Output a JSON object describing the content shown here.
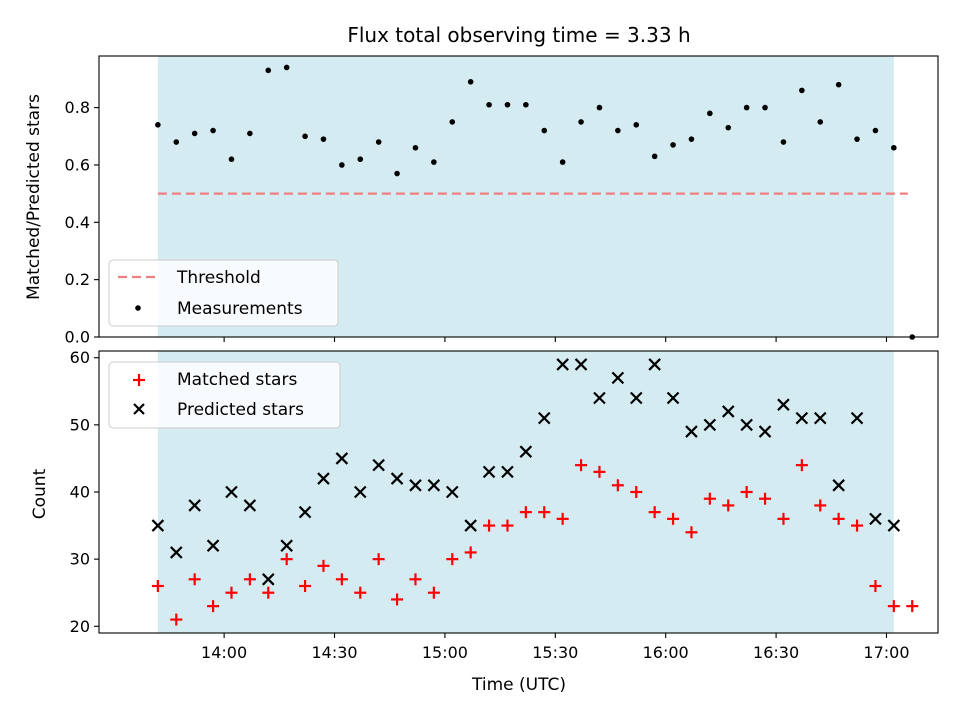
{
  "chart_data": [
    {
      "type": "scatter",
      "title": "Flux total observing time = 3.33 h",
      "xlabel": "",
      "ylabel": "Matched/Predicted stars",
      "ylim": [
        0,
        0.98
      ],
      "yticks": [
        "0.0",
        "0.2",
        "0.4",
        "0.6",
        "0.8"
      ],
      "grid": false,
      "legend_position": "lower-left",
      "shaded_interval": [
        "13:42",
        "17:02"
      ],
      "series": [
        {
          "name": "Threshold",
          "style": "dashed-line",
          "color": "#f08080",
          "x": [
            "13:42",
            "17:02"
          ],
          "y": [
            0.5,
            0.5
          ]
        },
        {
          "name": "Measurements",
          "style": "dot",
          "color": "#000000",
          "x": [
            "13:42",
            "13:47",
            "13:52",
            "13:57",
            "14:02",
            "14:07",
            "14:12",
            "14:17",
            "14:22",
            "14:27",
            "14:32",
            "14:37",
            "14:42",
            "14:47",
            "14:52",
            "14:57",
            "15:02",
            "15:07",
            "15:12",
            "15:17",
            "15:22",
            "15:27",
            "15:32",
            "15:37",
            "15:42",
            "15:47",
            "15:52",
            "15:57",
            "16:02",
            "16:07",
            "16:12",
            "16:17",
            "16:22",
            "16:27",
            "16:32",
            "16:37",
            "16:42",
            "16:47",
            "16:52",
            "16:57",
            "17:02",
            "17:07"
          ],
          "y": [
            0.74,
            0.68,
            0.71,
            0.72,
            0.62,
            0.71,
            0.93,
            0.94,
            0.7,
            0.69,
            0.6,
            0.62,
            0.68,
            0.57,
            0.66,
            0.61,
            0.75,
            0.89,
            0.81,
            0.81,
            0.81,
            0.72,
            0.61,
            0.75,
            0.8,
            0.72,
            0.74,
            0.63,
            0.67,
            0.69,
            0.78,
            0.73,
            0.8,
            0.8,
            0.68,
            0.86,
            0.75,
            0.88,
            0.69,
            0.72,
            0.66,
            0.0
          ]
        }
      ]
    },
    {
      "type": "scatter",
      "title": "",
      "xlabel": "Time (UTC)",
      "ylabel": "Count",
      "ylim": [
        19,
        61
      ],
      "yticks": [
        "20",
        "30",
        "40",
        "50",
        "60"
      ],
      "xticks": [
        "14:00",
        "14:30",
        "15:00",
        "15:30",
        "16:00",
        "16:30",
        "17:00"
      ],
      "grid": false,
      "legend_position": "upper-left",
      "shaded_interval": [
        "13:42",
        "17:02"
      ],
      "series": [
        {
          "name": "Matched stars",
          "style": "plus",
          "color": "#ff0000",
          "x": [
            "13:42",
            "13:47",
            "13:52",
            "13:57",
            "14:02",
            "14:07",
            "14:12",
            "14:17",
            "14:22",
            "14:27",
            "14:32",
            "14:37",
            "14:42",
            "14:47",
            "14:52",
            "14:57",
            "15:02",
            "15:07",
            "15:12",
            "15:17",
            "15:22",
            "15:27",
            "15:32",
            "15:37",
            "15:42",
            "15:47",
            "15:52",
            "15:57",
            "16:02",
            "16:07",
            "16:12",
            "16:17",
            "16:22",
            "16:27",
            "16:32",
            "16:37",
            "16:42",
            "16:47",
            "16:52",
            "16:57",
            "17:02",
            "17:07"
          ],
          "y": [
            26,
            21,
            27,
            23,
            25,
            27,
            25,
            30,
            26,
            29,
            27,
            25,
            30,
            24,
            27,
            25,
            30,
            31,
            35,
            35,
            37,
            37,
            36,
            44,
            43,
            41,
            40,
            37,
            36,
            34,
            39,
            38,
            40,
            39,
            36,
            44,
            38,
            36,
            35,
            26,
            23,
            23
          ]
        },
        {
          "name": "Predicted stars",
          "style": "x",
          "color": "#000000",
          "x": [
            "13:42",
            "13:47",
            "13:52",
            "13:57",
            "14:02",
            "14:07",
            "14:12",
            "14:17",
            "14:22",
            "14:27",
            "14:32",
            "14:37",
            "14:42",
            "14:47",
            "14:52",
            "14:57",
            "15:02",
            "15:07",
            "15:12",
            "15:17",
            "15:22",
            "15:27",
            "15:32",
            "15:37",
            "15:42",
            "15:47",
            "15:52",
            "15:57",
            "16:02",
            "16:07",
            "16:12",
            "16:17",
            "16:22",
            "16:27",
            "16:32",
            "16:37",
            "16:42",
            "16:47",
            "16:52",
            "16:57",
            "17:02"
          ],
          "y": [
            35,
            31,
            38,
            32,
            40,
            38,
            27,
            32,
            37,
            42,
            45,
            40,
            44,
            42,
            41,
            41,
            40,
            35,
            43,
            43,
            46,
            51,
            59,
            59,
            54,
            57,
            54,
            59,
            54,
            49,
            50,
            52,
            50,
            49,
            53,
            51,
            51,
            41,
            51,
            36,
            35
          ]
        }
      ]
    }
  ],
  "colors": {
    "shade": "#add8e6",
    "matched": "#ff0000",
    "predicted": "#000000",
    "threshold": "#f08080"
  }
}
